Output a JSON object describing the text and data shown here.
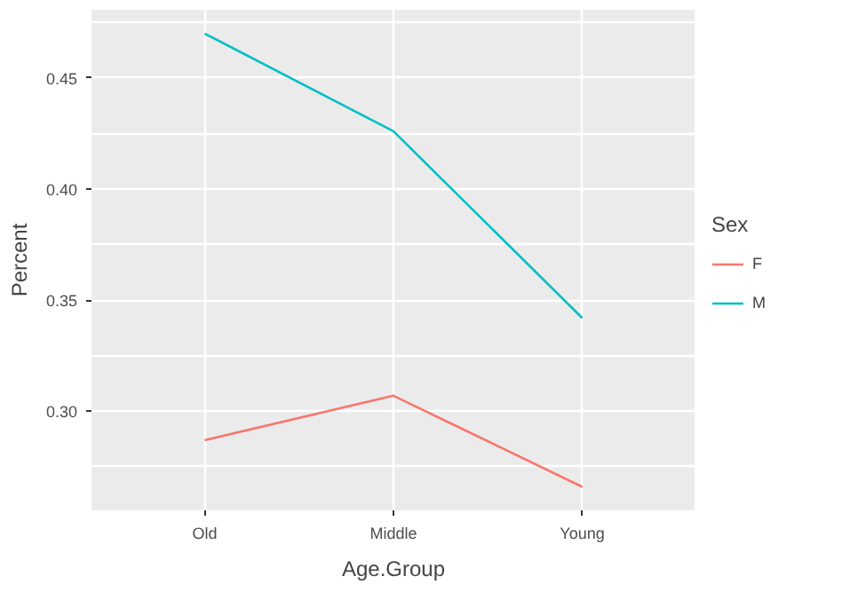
{
  "chart_data": {
    "type": "line",
    "xlabel": "Age.Group",
    "ylabel": "Percent",
    "legend_title": "Sex",
    "categories": [
      "Old",
      "Middle",
      "Young"
    ],
    "series": [
      {
        "name": "F",
        "color": "#f8766d",
        "values": [
          0.287,
          0.307,
          0.266
        ]
      },
      {
        "name": "M",
        "color": "#00bfc4",
        "values": [
          0.47,
          0.426,
          0.342
        ]
      }
    ],
    "ylim": [
      0.2554,
      0.4807
    ],
    "yticks": [
      {
        "value": 0.275,
        "label": null
      },
      {
        "value": 0.3,
        "label": "0.30"
      },
      {
        "value": 0.325,
        "label": null
      },
      0.35,
      {
        "value": 0.375,
        "label": null
      },
      {
        "value": 0.4,
        "label": "0.40"
      },
      {
        "value": 0.425,
        "label": null
      },
      0.45,
      {
        "value": 0.475,
        "label": null
      }
    ],
    "grid": true,
    "legend": "right",
    "line_style": "solid"
  }
}
